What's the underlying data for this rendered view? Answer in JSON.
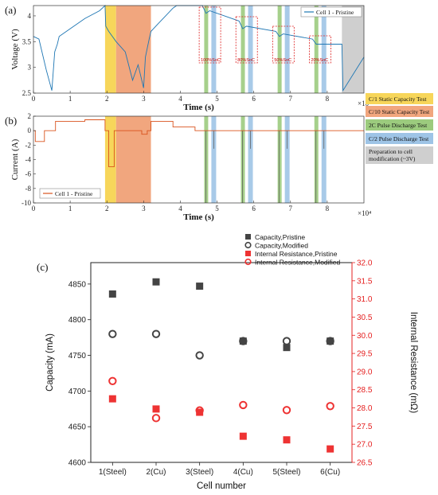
{
  "chart_data": [
    {
      "panel": "(a)",
      "type": "line",
      "xlabel": "Time (s)",
      "ylabel": "Voltage (V)",
      "xlim": [
        0,
        90000
      ],
      "ylim": [
        2.5,
        4.2
      ],
      "x_ticks": [
        "0",
        "1",
        "2",
        "3",
        "4",
        "5",
        "6",
        "7",
        "8"
      ],
      "x_multiplier": "×10⁴",
      "y_ticks": [
        "2.5",
        "3",
        "3.5",
        "4"
      ],
      "series": [
        {
          "name": "Cell 1 - Pristine",
          "color": "#1f77b4",
          "x": [
            0,
            1500,
            2500,
            3500,
            5000,
            5800,
            6500,
            7000,
            10000,
            14000,
            18000,
            19500,
            19700,
            20500,
            22500,
            25000,
            27000,
            28500,
            30000,
            30500,
            31500,
            32000,
            34000,
            36000,
            38000,
            39000,
            46000,
            47000,
            48000,
            56000,
            57000,
            58000,
            66000,
            67000,
            68000,
            76000,
            77000,
            78000,
            84000,
            84300,
            90000
          ],
          "y": [
            3.6,
            3.55,
            3.25,
            2.95,
            2.55,
            3.3,
            3.45,
            3.6,
            3.75,
            3.95,
            4.1,
            4.2,
            3.8,
            3.7,
            3.5,
            3.3,
            2.75,
            3.05,
            2.6,
            3.2,
            3.55,
            3.7,
            3.85,
            4.0,
            4.15,
            4.2,
            4.2,
            4.05,
            4.1,
            3.9,
            3.75,
            3.8,
            3.7,
            3.6,
            3.65,
            3.55,
            3.45,
            3.45,
            3.45,
            2.55,
            3.2
          ]
        }
      ],
      "annotations": [
        "100%SoC",
        "80%SoC",
        "50%SoC",
        "20%SoC"
      ]
    },
    {
      "panel": "(b)",
      "type": "line",
      "xlabel": "Time (s)",
      "ylabel": "Current (A)",
      "xlim": [
        0,
        90000
      ],
      "ylim": [
        -10,
        2
      ],
      "x_ticks": [
        "0",
        "1",
        "2",
        "3",
        "4",
        "5",
        "6",
        "7",
        "8"
      ],
      "x_multiplier": "×10⁴",
      "y_ticks": [
        "-10",
        "-8",
        "-6",
        "-4",
        "-2",
        "0",
        "2"
      ],
      "series": [
        {
          "name": "Cell 1 - Pristine",
          "color": "#d9531e",
          "x": [
            0,
            500,
            500,
            3000,
            3000,
            6000,
            6000,
            14000,
            14000,
            19500,
            19500,
            20500,
            20500,
            22000,
            22000,
            29500,
            29500,
            31000,
            31000,
            32000,
            32000,
            38000,
            38000,
            44000,
            44000,
            90000
          ],
          "y": [
            0,
            0,
            -1.5,
            -1.5,
            0,
            0,
            1.3,
            1.3,
            1.5,
            1.5,
            0,
            0,
            -5,
            -5,
            0,
            0,
            -0.5,
            -0.5,
            0,
            0,
            1.3,
            1.3,
            0.5,
            0.5,
            0,
            0
          ]
        }
      ]
    },
    {
      "panel": "(c)",
      "type": "scatter",
      "xlabel": "Cell number",
      "ylabel": "Capacity (mA)",
      "y2label": "Internal Resistance (mΩ)",
      "categories": [
        "1(Steel)",
        "2(Cu)",
        "3(Steel)",
        "4(Cu)",
        "5(Steel)",
        "6(Cu)"
      ],
      "ylim": [
        4600,
        4880
      ],
      "y2lim": [
        26.5,
        32.0
      ],
      "y_ticks": [
        "4600",
        "4650",
        "4700",
        "4750",
        "4800",
        "4850"
      ],
      "y2_ticks": [
        "26.5",
        "27.0",
        "27.5",
        "28.0",
        "28.5",
        "29.0",
        "29.5",
        "30.0",
        "30.5",
        "31.0",
        "31.5",
        "32.0"
      ],
      "series": [
        {
          "name": "Capacity,Pristine",
          "axis": "left",
          "marker": "filled-square",
          "color": "#444444",
          "values": [
            4836,
            4853,
            4847,
            4770,
            4761,
            4770
          ]
        },
        {
          "name": "Capacity,Modified",
          "axis": "left",
          "marker": "open-circle",
          "color": "#444444",
          "values": [
            4780,
            4780,
            4750,
            4770,
            4770,
            4770
          ]
        },
        {
          "name": "Internal Resistance,Pristine",
          "axis": "right",
          "marker": "filled-square",
          "color": "#ee3333",
          "values": [
            28.25,
            27.97,
            27.88,
            27.22,
            27.12,
            26.87
          ]
        },
        {
          "name": "Internal Resistance,Modified",
          "axis": "right",
          "marker": "open-circle",
          "color": "#ee3333",
          "values": [
            28.74,
            27.72,
            27.93,
            28.08,
            27.94,
            28.05
          ]
        }
      ]
    }
  ],
  "panels": {
    "a_label": "(a)",
    "b_label": "(b)",
    "c_label": "(c)"
  },
  "test_legend": [
    {
      "label": "C/1 Static Capacity Test",
      "color": "#f7d65a"
    },
    {
      "label": "C/10 Static Capacity Test",
      "color": "#f1a67e"
    },
    {
      "label": "2C Pulse Discharge Test",
      "color": "#9ccb7e"
    },
    {
      "label": "C/2 Pulse Discharge Test",
      "color": "#9ec4e6"
    },
    {
      "label": "Preparation to cell modification (~3V)",
      "color": "#cfcfcf"
    }
  ],
  "test_legend_lines": {
    "l1": "C/1 Static Capacity Test",
    "l2": "C/10 Static Capacity Test",
    "l3": "2C Pulse Discharge Test",
    "l4": "C/2 Pulse Discharge Test",
    "l5a": "Preparation to cell",
    "l5b": "modification (~3V)"
  },
  "colors": {
    "voltage": "#1f77b4",
    "current": "#d9531e",
    "pristine_cap": "#444444",
    "ir": "#ee3333"
  }
}
